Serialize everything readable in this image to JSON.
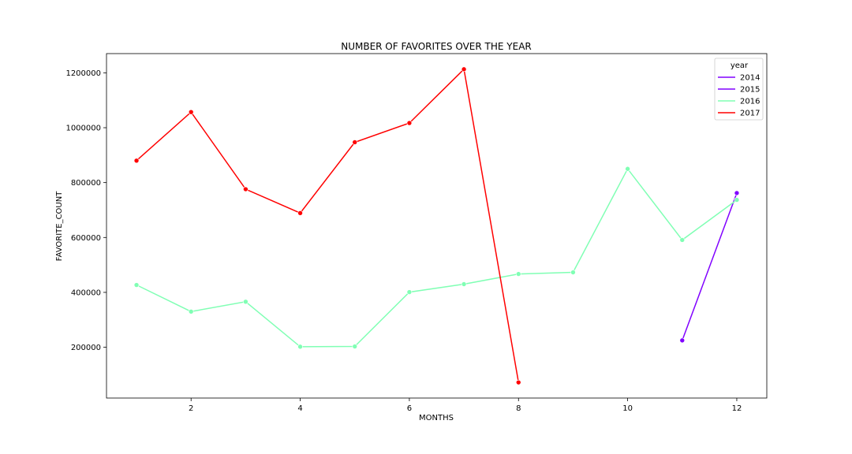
{
  "chart_data": {
    "type": "line",
    "title": "NUMBER OF FAVORITES OVER THE YEAR",
    "xlabel": "MONTHS",
    "ylabel": "FAVORITE_COUNT",
    "xlim": [
      0.45,
      12.55
    ],
    "ylim": [
      15000,
      1270000
    ],
    "xticks": [
      2,
      4,
      6,
      8,
      10,
      12
    ],
    "yticks": [
      200000,
      400000,
      600000,
      800000,
      1000000,
      1200000
    ],
    "grid": false,
    "legend": {
      "title": "year",
      "placement": "top-right",
      "entries": [
        {
          "label": "2014",
          "color": "#8000ff"
        },
        {
          "label": "2015",
          "color": "#8000ff"
        },
        {
          "label": "2016",
          "color": "#80ffb4"
        },
        {
          "label": "2017",
          "color": "#ff0000"
        }
      ]
    },
    "series": [
      {
        "name": "2015",
        "color": "#8000ff",
        "x": [
          11,
          12
        ],
        "y": [
          225000,
          762000
        ]
      },
      {
        "name": "2016",
        "color": "#80ffb4",
        "x": [
          1,
          2,
          3,
          4,
          5,
          6,
          7,
          8,
          9,
          10,
          11,
          12
        ],
        "y": [
          427000,
          330000,
          366000,
          202000,
          203000,
          401000,
          430000,
          467000,
          473000,
          850000,
          591000,
          737000
        ]
      },
      {
        "name": "2017",
        "color": "#ff0000",
        "x": [
          1,
          2,
          3,
          4,
          5,
          6,
          7,
          8
        ],
        "y": [
          880000,
          1057000,
          776000,
          689000,
          947000,
          1017000,
          1213000,
          72000
        ]
      }
    ]
  }
}
